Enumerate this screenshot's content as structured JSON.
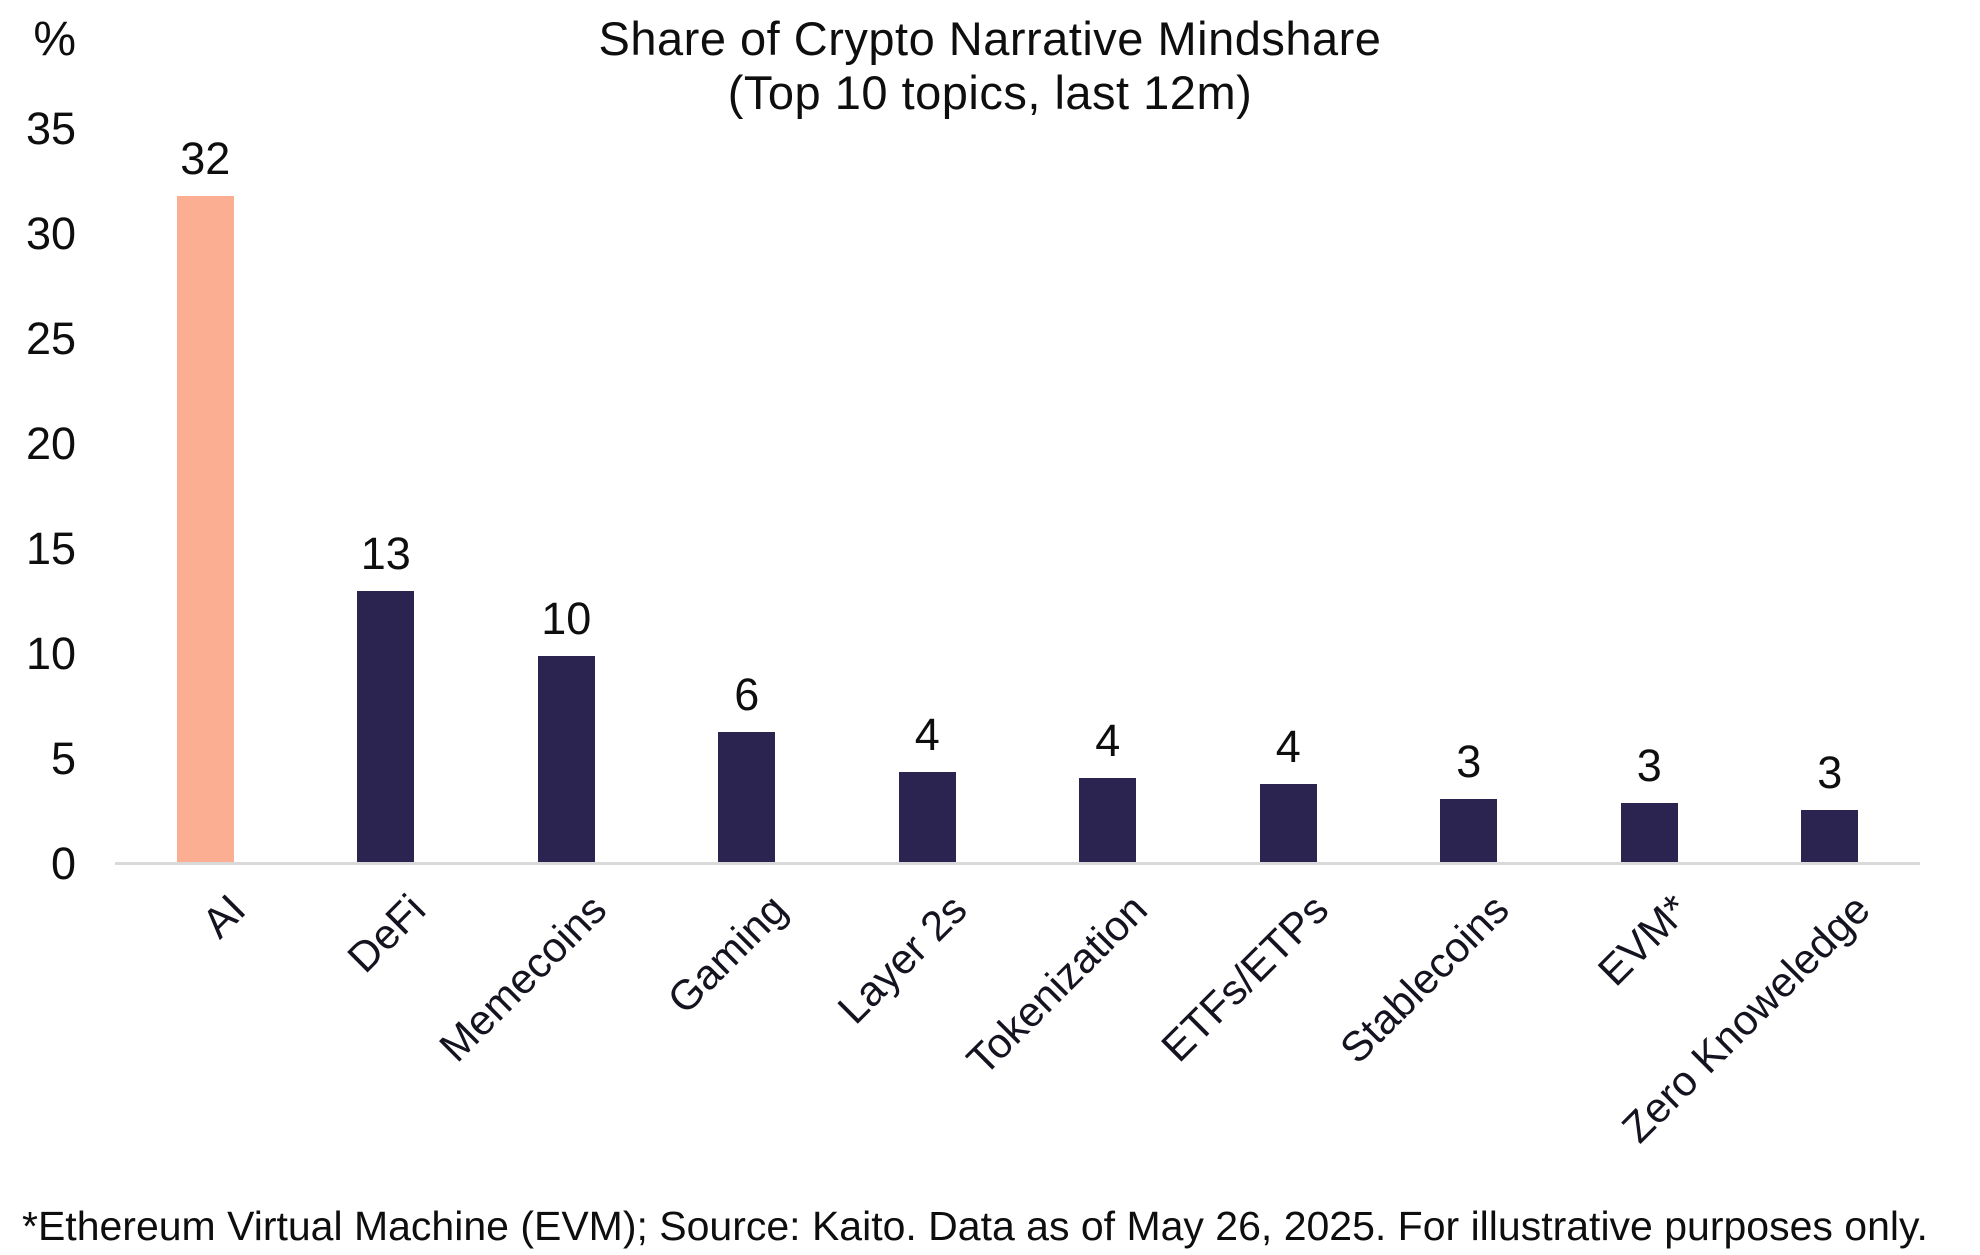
{
  "chart_data": {
    "type": "bar",
    "title": "Share of Crypto Narrative Mindshare",
    "subtitle": "(Top 10 topics, last 12m)",
    "y_unit_label": "%",
    "categories": [
      "AI",
      "DeFi",
      "Memecoins",
      "Gaming",
      "Layer 2s",
      "Tokenization",
      "ETFs/ETPs",
      "Stablecoins",
      "EVM*",
      "Zero Knoweledge"
    ],
    "values": [
      32,
      13,
      10,
      6,
      4,
      4,
      4,
      3,
      3,
      3
    ],
    "bar_heights_pct": [
      31.7,
      12.9,
      9.8,
      6.2,
      4.3,
      4.0,
      3.7,
      3.0,
      2.8,
      2.5
    ],
    "y_ticks": [
      35,
      30,
      25,
      20,
      15,
      10,
      5,
      0
    ],
    "ylim": [
      0,
      35
    ],
    "xlabel": "",
    "ylabel": "%",
    "grid": false,
    "legend_position": "none",
    "highlight_index": 0,
    "colors": {
      "highlight_bar": "#FCAE93",
      "default_bar": "#2B2350",
      "axis_line": "#D9D9D9",
      "text": "#0E0E0E"
    }
  },
  "footnote": "*Ethereum Virtual Machine (EVM); Source: Kaito. Data as of May 26, 2025. For illustrative purposes only."
}
